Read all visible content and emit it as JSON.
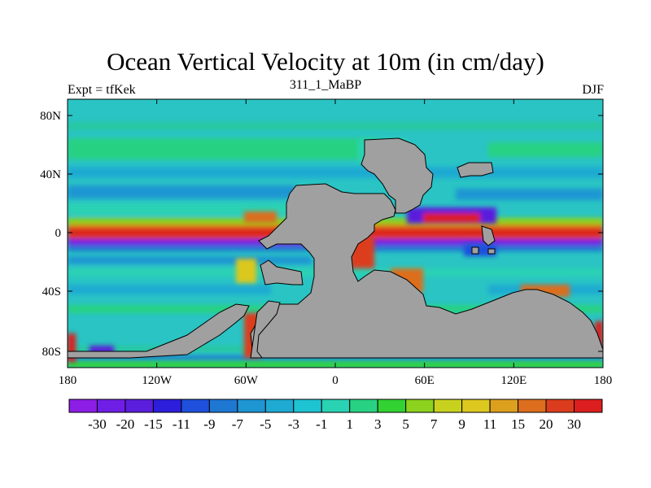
{
  "title": "Ocean Vertical Velocity at 10m (in cm/day)",
  "left_string": "Expt = tfKek",
  "center_string": "311_1_MaBP",
  "right_string": "DJF",
  "x_ticks": [
    "180",
    "120W",
    "60W",
    "0",
    "60E",
    "120E",
    "180"
  ],
  "y_ticks": [
    "80N",
    "40N",
    "0",
    "40S",
    "80S"
  ],
  "colors": {
    "land": "#a0a0a0",
    "ocean_background": "#2ac4c4",
    "coast": "#000000"
  },
  "colorbar": {
    "labels": [
      "-30",
      "-20",
      "-15",
      "-11",
      "-9",
      "-7",
      "-5",
      "-3",
      "-1",
      "1",
      "3",
      "5",
      "7",
      "9",
      "11",
      "15",
      "20",
      "30"
    ],
    "colors": [
      "#8c1ee6",
      "#6f1ee6",
      "#5a1edc",
      "#2d1edc",
      "#1e50dc",
      "#1e78d2",
      "#1e96d2",
      "#1eaad2",
      "#1ec3d2",
      "#2ad2b4",
      "#28d282",
      "#32d232",
      "#8cd21e",
      "#c8d21e",
      "#dcc81e",
      "#dca01e",
      "#dc6e1e",
      "#dc3c1e",
      "#dc1e1e"
    ]
  }
}
